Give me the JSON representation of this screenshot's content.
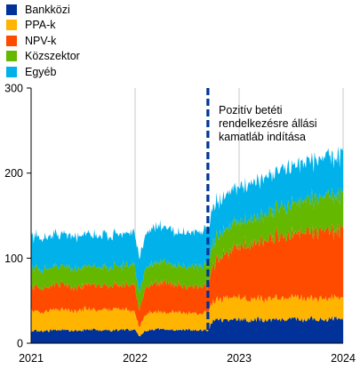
{
  "chart_data": {
    "type": "area",
    "stacked": true,
    "title": "",
    "xlabel": "",
    "ylabel": "",
    "ylim": [
      0,
      300
    ],
    "yticks": [
      0,
      100,
      200,
      300
    ],
    "xticks": [
      "2021",
      "2022",
      "2023",
      "2024"
    ],
    "grid": "vertical at year boundaries",
    "legend_position": "top-left",
    "annotation": {
      "lines": [
        "Pozitív betéti",
        "rendelkezésre állási",
        "kamatláb indítása"
      ],
      "x": 2022.7
    },
    "x": [
      2021.0,
      2021.1,
      2021.2,
      2021.3,
      2021.4,
      2021.5,
      2021.6,
      2021.7,
      2021.8,
      2021.9,
      2022.0,
      2022.04,
      2022.1,
      2022.2,
      2022.3,
      2022.4,
      2022.5,
      2022.6,
      2022.7,
      2022.75,
      2022.8,
      2022.9,
      2023.0,
      2023.1,
      2023.2,
      2023.3,
      2023.4,
      2023.5,
      2023.6,
      2023.7,
      2023.8,
      2023.9,
      2024.0
    ],
    "series": [
      {
        "name": "Bankközi",
        "color": "#003299",
        "values": [
          15,
          14,
          15,
          16,
          15,
          15,
          16,
          15,
          15,
          16,
          15,
          8,
          15,
          17,
          16,
          15,
          16,
          15,
          15,
          26,
          27,
          26,
          28,
          27,
          28,
          27,
          28,
          28,
          27,
          29,
          28,
          29,
          28
        ]
      },
      {
        "name": "PPA-k",
        "color": "#FFB400",
        "values": [
          25,
          22,
          24,
          24,
          23,
          25,
          24,
          24,
          25,
          24,
          20,
          10,
          20,
          20,
          20,
          21,
          20,
          20,
          22,
          22,
          24,
          26,
          26,
          24,
          25,
          26,
          25,
          25,
          26,
          24,
          25,
          24,
          25
        ]
      },
      {
        "name": "NPV-k",
        "color": "#FF4B00",
        "values": [
          28,
          28,
          29,
          30,
          28,
          29,
          30,
          28,
          29,
          28,
          30,
          20,
          32,
          35,
          34,
          33,
          30,
          32,
          30,
          42,
          48,
          54,
          60,
          65,
          68,
          70,
          72,
          75,
          76,
          78,
          80,
          78,
          79
        ]
      },
      {
        "name": "Közszektor",
        "color": "#65B800",
        "values": [
          22,
          22,
          22,
          21,
          22,
          22,
          21,
          22,
          22,
          23,
          23,
          20,
          23,
          24,
          24,
          23,
          23,
          24,
          24,
          26,
          28,
          30,
          28,
          30,
          30,
          32,
          34,
          36,
          38,
          38,
          40,
          42,
          40
        ]
      },
      {
        "name": "Egyéb",
        "color": "#00B1EA",
        "values": [
          36,
          38,
          37,
          37,
          38,
          37,
          37,
          38,
          38,
          37,
          40,
          38,
          42,
          42,
          41,
          40,
          41,
          42,
          40,
          40,
          40,
          40,
          40,
          42,
          43,
          43,
          44,
          44,
          45,
          46,
          46,
          45,
          46
        ]
      }
    ]
  }
}
